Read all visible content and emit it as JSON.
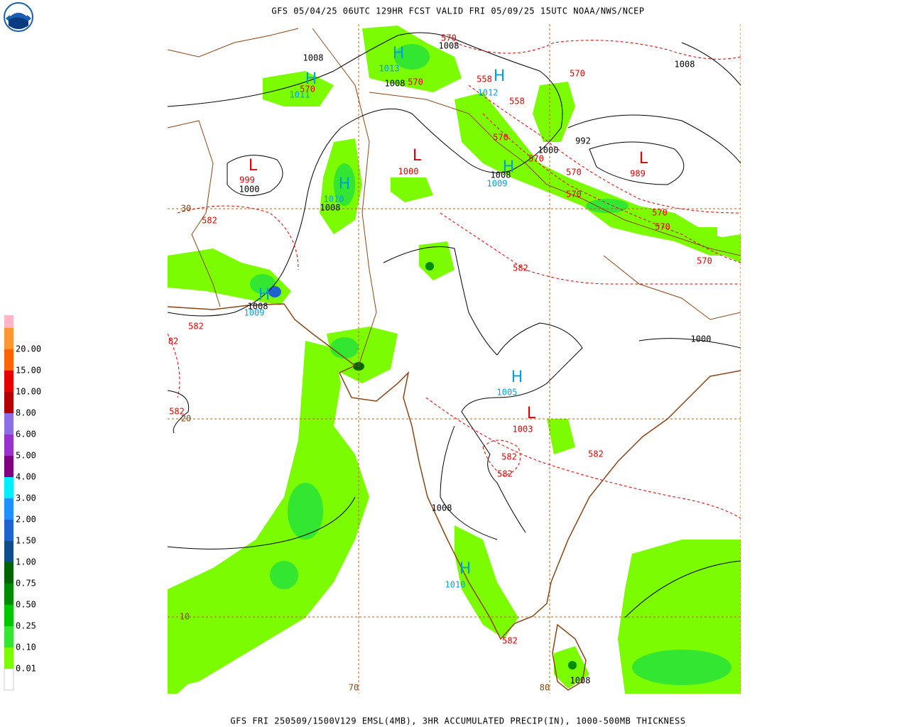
{
  "header": {
    "title": "GFS 05/04/25 06UTC 129HR FCST VALID FRI 05/09/25 15UTC NOAA/NWS/NCEP"
  },
  "footer": {
    "caption": "GFS FRI 250509/1500V129 EMSL(4MB), 3HR ACCUMULATED PRECIP(IN), 1000-500MB THICKNESS"
  },
  "legend": {
    "levels": [
      {
        "label": "0.01",
        "color": "#7cfc00"
      },
      {
        "label": "0.10",
        "color": "#32e632"
      },
      {
        "label": "0.25",
        "color": "#00c800"
      },
      {
        "label": "0.50",
        "color": "#008c00"
      },
      {
        "label": "0.75",
        "color": "#006400"
      },
      {
        "label": "1.00",
        "color": "#104e8b"
      },
      {
        "label": "1.50",
        "color": "#1e64d0"
      },
      {
        "label": "2.00",
        "color": "#1e90ff"
      },
      {
        "label": "3.00",
        "color": "#00eeff"
      },
      {
        "label": "4.00",
        "color": "#800080"
      },
      {
        "label": "5.00",
        "color": "#9932cc"
      },
      {
        "label": "6.00",
        "color": "#8c6ee6"
      },
      {
        "label": "8.00",
        "color": "#b40000"
      },
      {
        "label": "10.00",
        "color": "#e60000"
      },
      {
        "label": "15.00",
        "color": "#ff6400"
      },
      {
        "label": "20.00",
        "color": "#ff9632"
      }
    ],
    "top_color": "#ffb4c8"
  },
  "map": {
    "grid_labels": [
      30,
      20,
      10,
      70,
      80
    ],
    "thickness_labels": [
      570,
      570,
      570,
      558,
      570,
      558,
      570,
      570,
      570,
      570,
      570,
      570,
      570,
      582,
      582,
      582,
      82,
      582,
      582,
      582,
      582,
      582
    ],
    "low_centers": [
      {
        "symbol": "L",
        "pressure": 1000
      },
      {
        "symbol": "L",
        "pressure": 999
      },
      {
        "symbol": "L",
        "pressure": 989
      },
      {
        "symbol": "L",
        "pressure": 1003
      }
    ],
    "high_centers": [
      {
        "symbol": "H",
        "pressure": 1013
      },
      {
        "symbol": "H",
        "pressure": 1011
      },
      {
        "symbol": "H",
        "pressure": 1012
      },
      {
        "symbol": "H",
        "pressure": 1009
      },
      {
        "symbol": "H",
        "pressure": 1010
      },
      {
        "symbol": "H",
        "pressure": 1009
      },
      {
        "symbol": "H",
        "pressure": 1005
      },
      {
        "symbol": "H",
        "pressure": 1010
      }
    ],
    "isobar_labels": [
      1008,
      1008,
      1008,
      1008,
      1000,
      992,
      1008,
      1000,
      1008,
      1008,
      1000,
      1008,
      1008
    ]
  }
}
